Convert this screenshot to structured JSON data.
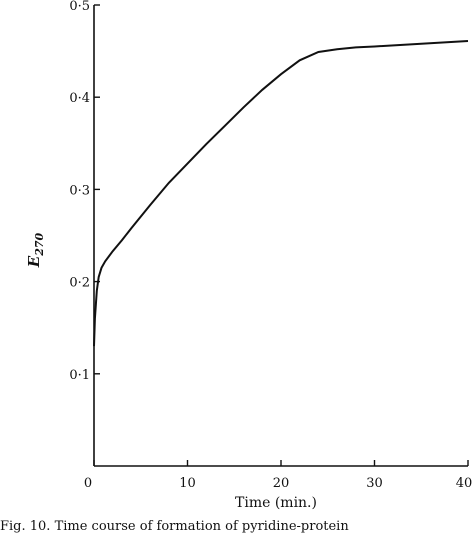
{
  "chart_data": {
    "type": "line",
    "title": "",
    "xlabel": "Time (min.)",
    "ylabel": "E",
    "ylabel_subscript": "270",
    "xlim": [
      0,
      40
    ],
    "ylim": [
      0,
      0.5
    ],
    "xticks": [
      0,
      10,
      20,
      30,
      40
    ],
    "xtick_labels": [
      "0",
      "10",
      "20",
      "30",
      "40"
    ],
    "yticks": [
      0.1,
      0.2,
      0.3,
      0.4,
      0.5
    ],
    "ytick_labels": [
      "0·1",
      "0·2",
      "0·3",
      "0·4",
      "0·5"
    ],
    "grid": false,
    "series": [
      {
        "x": [
          0,
          0.1,
          0.3,
          0.5,
          0.8,
          1.2,
          2,
          3,
          4,
          6,
          8,
          10,
          12,
          14,
          16,
          18,
          20,
          22,
          24,
          26,
          28,
          30,
          35,
          40
        ],
        "y": [
          0.13,
          0.16,
          0.19,
          0.205,
          0.215,
          0.222,
          0.233,
          0.245,
          0.258,
          0.283,
          0.307,
          0.328,
          0.349,
          0.369,
          0.389,
          0.408,
          0.425,
          0.44,
          0.449,
          0.452,
          0.454,
          0.455,
          0.458,
          0.461
        ]
      }
    ]
  },
  "caption": "Fig. 10. Time course of formation of pyridine-protein"
}
